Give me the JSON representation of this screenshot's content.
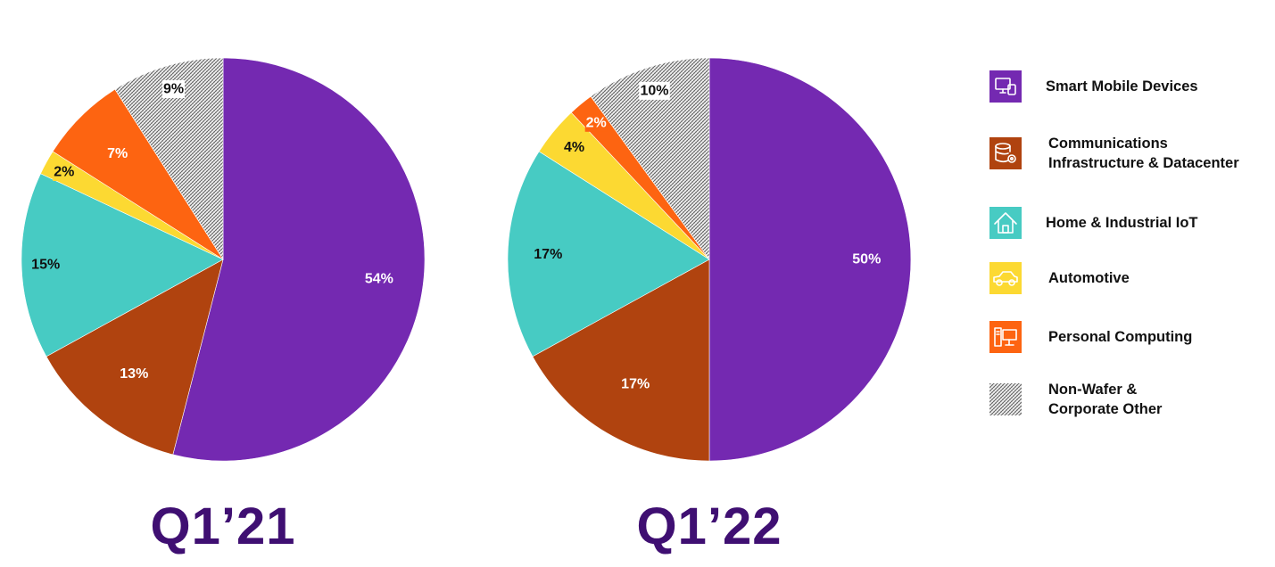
{
  "chart_data": [
    {
      "type": "pie",
      "title": "Q1’21",
      "categories": [
        "Smart Mobile Devices",
        "Communications Infrastructure & Datacenter",
        "Home & Industrial IoT",
        "Automotive",
        "Personal Computing",
        "Non-Wafer & Corporate Other"
      ],
      "values": [
        54,
        13,
        15,
        2,
        7,
        9
      ],
      "labels": [
        "54%",
        "13%",
        "15%",
        "2%",
        "7%",
        "9%"
      ]
    },
    {
      "type": "pie",
      "title": "Q1’22",
      "categories": [
        "Smart Mobile Devices",
        "Communications Infrastructure & Datacenter",
        "Home & Industrial IoT",
        "Automotive",
        "Personal Computing",
        "Non-Wafer & Corporate Other"
      ],
      "values": [
        50,
        17,
        17,
        4,
        2,
        10
      ],
      "labels": [
        "50%",
        "17%",
        "17%",
        "4%",
        "2%",
        "10%"
      ]
    }
  ],
  "colors": {
    "Smart Mobile Devices": "#7429b1",
    "Communications Infrastructure & Datacenter": "#b0430f",
    "Home & Industrial IoT": "#47cbc3",
    "Automotive": "#fcd932",
    "Personal Computing": "#fd6411",
    "Non-Wafer & Corporate Other": "hatch",
    "title": "#3f0f72"
  },
  "label_colors": [
    "#ffffff",
    "#ffffff",
    "#111111",
    "#111111",
    "#ffffff",
    "#111111"
  ],
  "legend": [
    {
      "lines": [
        "Smart Mobile Devices"
      ],
      "icon": "devices-icon"
    },
    {
      "lines": [
        "Communications",
        "Infrastructure & Datacenter"
      ],
      "icon": "database-gear-icon"
    },
    {
      "lines": [
        "Home & Industrial IoT"
      ],
      "icon": "house-icon"
    },
    {
      "lines": [
        "Automotive"
      ],
      "icon": "car-icon"
    },
    {
      "lines": [
        "Personal Computing"
      ],
      "icon": "desktop-computer-icon"
    },
    {
      "lines": [
        "Non-Wafer &",
        "Corporate Other"
      ],
      "icon": "hatch-swatch-icon"
    }
  ]
}
